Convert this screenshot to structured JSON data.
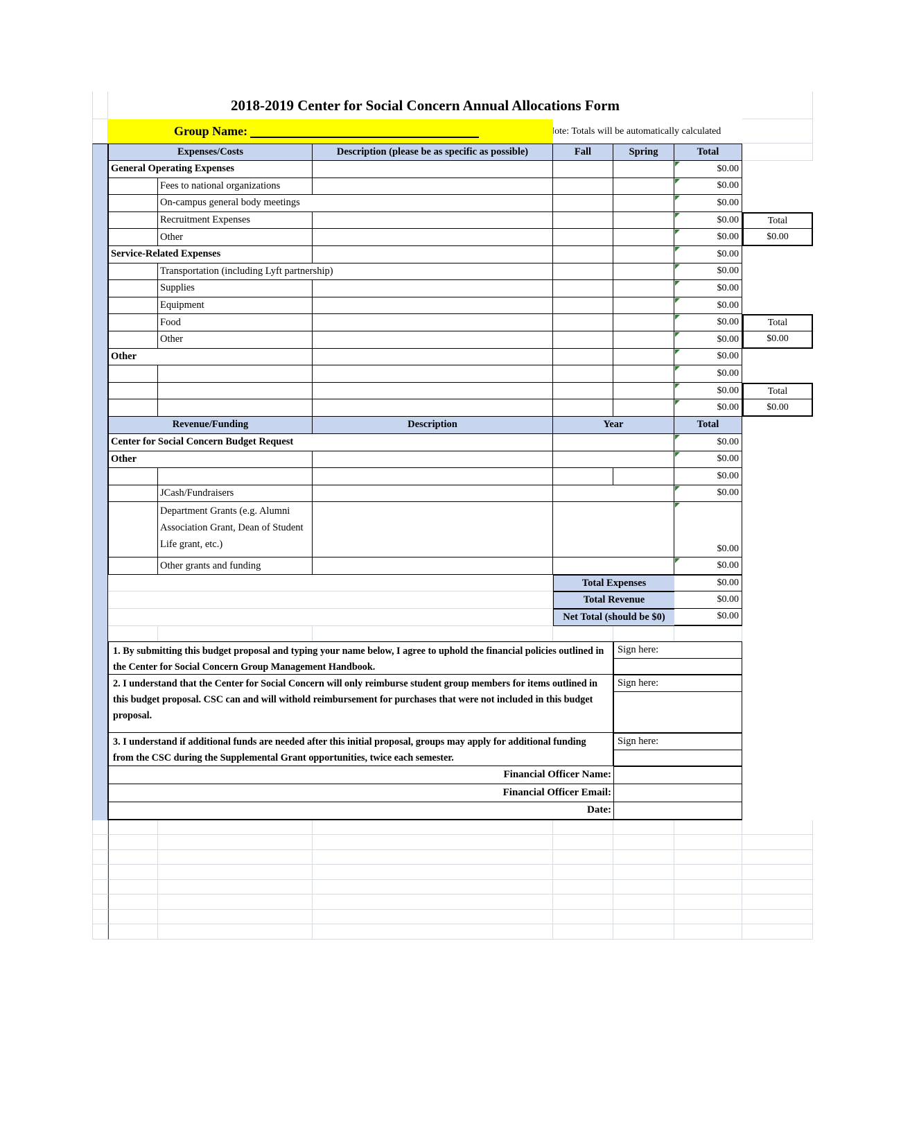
{
  "sheet": {
    "title": "2018-2019 Center for Social Concern Annual Allocations Form",
    "group_label": "Group Name:",
    "group_value": "",
    "note": "Note: Totals will be automatically calculated"
  },
  "expense_table": {
    "header": {
      "costs": "Expenses/Costs",
      "description": "Description (please be as specific as possible)",
      "fall": "Fall",
      "spring": "Spring",
      "total": "Total"
    },
    "rows": [
      {
        "label": "General Operating Expenses",
        "total": "$0.00"
      },
      {
        "label": "Fees to national organizations",
        "total": "$0.00"
      },
      {
        "label": "On-campus general body meetings",
        "total": "$0.00"
      },
      {
        "label": "Recruitment Expenses",
        "total": "$0.00"
      },
      {
        "label": "Other",
        "total": "$0.00"
      },
      {
        "label": "Service-Related Expenses",
        "total": "$0.00"
      },
      {
        "label": "Transportation (including Lyft partnership)",
        "total": "$0.00"
      },
      {
        "label": "Supplies",
        "total": "$0.00"
      },
      {
        "label": "Equipment",
        "total": "$0.00"
      },
      {
        "label": "Food",
        "total": "$0.00"
      },
      {
        "label": "Other",
        "total": "$0.00"
      },
      {
        "label": "Other",
        "total": "$0.00"
      },
      {
        "label": "",
        "total": "$0.00"
      },
      {
        "label": "",
        "total": "$0.00"
      },
      {
        "label": "",
        "total": "$0.00"
      }
    ]
  },
  "revenue_table": {
    "header": {
      "source": "Revenue/Funding",
      "description": "Description",
      "year": "Year",
      "total": "Total"
    },
    "rows": [
      {
        "label": "Center for Social Concern Budget Request",
        "total": "$0.00"
      },
      {
        "label": "Other",
        "total": "$0.00"
      },
      {
        "label": "",
        "total": "$0.00"
      },
      {
        "label": "JCash/Fundraisers",
        "total": "$0.00"
      },
      {
        "label": "Department Grants (e.g. Alumni Association Grant, Dean of Student Life grant, etc.)",
        "total": "$0.00"
      },
      {
        "label": "Other grants and funding",
        "total": "$0.00"
      }
    ]
  },
  "side_totals": [
    {
      "label": "Total",
      "value": "$0.00"
    },
    {
      "label": "Total",
      "value": "$0.00"
    },
    {
      "label": "Total",
      "value": "$0.00"
    }
  ],
  "summary": [
    {
      "label": "Total Expenses",
      "value": "$0.00"
    },
    {
      "label": "Total Revenue",
      "value": "$0.00"
    },
    {
      "label": "Net Total (should be $0)",
      "value": "$0.00"
    }
  ],
  "agreements": [
    {
      "text": "1. By submitting this budget proposal and typing your name below, I agree to uphold the financial policies outlined in the Center for Social Concern Group Management Handbook.",
      "sign_label": "Sign here:"
    },
    {
      "text": "2. I understand that the Center for Social Concern will only reimburse student group members for items outlined in this budget proposal. CSC can and will withold reimbursement for purchases that were not included in this budget proposal.",
      "sign_label": "Sign here:"
    },
    {
      "text": "3. I understand if additional funds are needed after this initial proposal, groups may apply for additional funding from the CSC during the Supplemental Grant opportunities, twice each semester.",
      "sign_label": "Sign here:"
    }
  ],
  "footer_fields": [
    {
      "label": "Financial  Officer Name:",
      "value": ""
    },
    {
      "label": "Financial  Officer Email:",
      "value": ""
    },
    {
      "label": "Date:",
      "value": ""
    }
  ],
  "colors": {
    "header_fill": "#c7d5ef",
    "highlight": "#ffff00",
    "flag_green": "#2e7d32"
  }
}
